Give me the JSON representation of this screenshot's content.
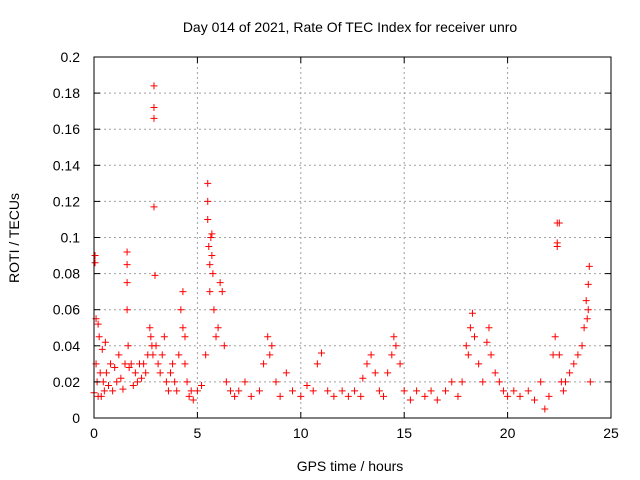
{
  "chart_data": {
    "type": "scatter",
    "title": "Day 014 of 2021, Rate Of TEC Index for receiver unro",
    "xlabel": "GPS time / hours",
    "ylabel": "ROTI / TECUs",
    "xlim": [
      0,
      25
    ],
    "ylim": [
      0,
      0.2
    ],
    "xticks": [
      "0",
      "5",
      "10",
      "15",
      "20",
      "25"
    ],
    "yticks": [
      "0",
      "0.02",
      "0.04",
      "0.06",
      "0.08",
      "0.1",
      "0.12",
      "0.14",
      "0.16",
      "0.18",
      "0.2"
    ],
    "grid": true,
    "marker": "+",
    "color": "#ff0000",
    "series": [
      {
        "x": [
          0.0,
          0.05,
          0.05,
          0.1,
          0.1,
          0.15,
          0.2,
          0.2,
          0.25,
          0.3,
          0.35,
          0.4,
          0.45,
          0.5,
          0.55,
          0.6,
          0.7,
          0.8,
          0.9,
          1.0,
          1.1,
          1.2,
          1.3,
          1.4,
          1.5,
          1.6,
          1.6,
          1.6,
          1.6,
          1.65,
          1.7,
          1.8,
          1.9,
          2.0,
          2.1,
          2.2,
          2.3,
          2.4,
          2.5,
          2.6,
          2.7,
          2.75,
          2.8,
          2.85,
          2.9,
          2.9,
          2.9,
          2.9,
          2.95,
          3.0,
          3.1,
          3.2,
          3.3,
          3.4,
          3.5,
          3.6,
          3.7,
          3.8,
          3.9,
          4.0,
          4.1,
          4.2,
          4.3,
          4.3,
          4.4,
          4.4,
          4.5,
          4.6,
          4.7,
          4.8,
          5.0,
          5.2,
          5.4,
          5.5,
          5.5,
          5.5,
          5.55,
          5.6,
          5.6,
          5.65,
          5.7,
          5.7,
          5.75,
          5.8,
          5.9,
          6.0,
          6.1,
          6.2,
          6.3,
          6.4,
          6.6,
          6.8,
          7.0,
          7.3,
          7.6,
          8.0,
          8.2,
          8.4,
          8.5,
          8.6,
          8.8,
          9.0,
          9.3,
          9.6,
          10.0,
          10.3,
          10.6,
          10.8,
          11.0,
          11.3,
          11.6,
          12.0,
          12.3,
          12.6,
          12.9,
          13.0,
          13.2,
          13.4,
          13.6,
          13.8,
          14.0,
          14.2,
          14.4,
          14.5,
          14.6,
          14.8,
          15.0,
          15.3,
          15.6,
          16.0,
          16.3,
          16.6,
          17.0,
          17.3,
          17.6,
          17.8,
          18.0,
          18.1,
          18.2,
          18.3,
          18.4,
          18.6,
          18.8,
          19.0,
          19.1,
          19.2,
          19.4,
          19.6,
          19.8,
          20.0,
          20.3,
          20.6,
          21.0,
          21.3,
          21.6,
          21.8,
          22.0,
          22.2,
          22.3,
          22.4,
          22.4,
          22.4,
          22.5,
          22.5,
          22.6,
          22.7,
          22.8,
          23.0,
          23.2,
          23.4,
          23.6,
          23.7,
          23.8,
          23.85,
          23.9,
          23.9,
          23.95,
          24.0
        ],
        "y": [
          0.014,
          0.09,
          0.086,
          0.055,
          0.03,
          0.02,
          0.052,
          0.012,
          0.045,
          0.025,
          0.012,
          0.038,
          0.02,
          0.015,
          0.042,
          0.025,
          0.018,
          0.03,
          0.015,
          0.028,
          0.02,
          0.035,
          0.022,
          0.016,
          0.03,
          0.092,
          0.085,
          0.075,
          0.06,
          0.04,
          0.028,
          0.03,
          0.018,
          0.025,
          0.02,
          0.03,
          0.022,
          0.03,
          0.025,
          0.035,
          0.05,
          0.045,
          0.04,
          0.035,
          0.184,
          0.172,
          0.166,
          0.117,
          0.079,
          0.04,
          0.03,
          0.025,
          0.035,
          0.045,
          0.02,
          0.015,
          0.025,
          0.03,
          0.02,
          0.015,
          0.035,
          0.06,
          0.07,
          0.05,
          0.045,
          0.03,
          0.02,
          0.012,
          0.015,
          0.01,
          0.015,
          0.018,
          0.035,
          0.13,
          0.12,
          0.11,
          0.095,
          0.085,
          0.07,
          0.1,
          0.102,
          0.09,
          0.08,
          0.06,
          0.045,
          0.05,
          0.075,
          0.07,
          0.04,
          0.02,
          0.015,
          0.012,
          0.015,
          0.02,
          0.012,
          0.015,
          0.03,
          0.045,
          0.035,
          0.04,
          0.02,
          0.012,
          0.025,
          0.015,
          0.012,
          0.018,
          0.015,
          0.03,
          0.036,
          0.015,
          0.012,
          0.015,
          0.012,
          0.015,
          0.012,
          0.022,
          0.03,
          0.035,
          0.025,
          0.015,
          0.012,
          0.025,
          0.035,
          0.045,
          0.04,
          0.03,
          0.015,
          0.01,
          0.015,
          0.012,
          0.015,
          0.01,
          0.015,
          0.02,
          0.012,
          0.02,
          0.04,
          0.035,
          0.05,
          0.058,
          0.045,
          0.03,
          0.02,
          0.042,
          0.05,
          0.035,
          0.025,
          0.02,
          0.015,
          0.012,
          0.015,
          0.012,
          0.015,
          0.01,
          0.02,
          0.005,
          0.012,
          0.035,
          0.045,
          0.097,
          0.095,
          0.108,
          0.108,
          0.035,
          0.02,
          0.015,
          0.02,
          0.025,
          0.03,
          0.035,
          0.04,
          0.05,
          0.065,
          0.055,
          0.074,
          0.06,
          0.084,
          0.02
        ]
      }
    ]
  }
}
